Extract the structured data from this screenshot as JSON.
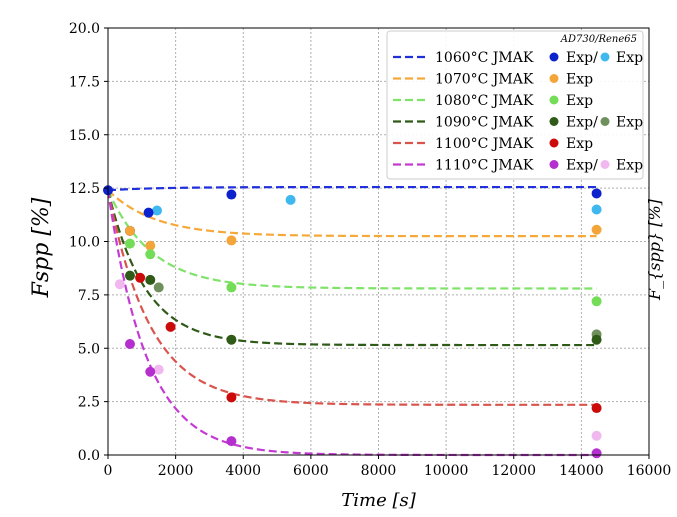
{
  "chart_data": {
    "type": "line",
    "xlabel": "Time [s]",
    "ylabel": "Fspp [%]",
    "xlim": [
      0,
      16000
    ],
    "ylim": [
      0,
      20
    ],
    "x_ticks": [
      0,
      2000,
      4000,
      6000,
      8000,
      10000,
      12000,
      14000,
      16000
    ],
    "y_ticks": [
      "0.0",
      "2.5",
      "5.0",
      "7.5",
      "10.0",
      "12.5",
      "15.0",
      "17.5",
      "20.0"
    ],
    "grid": true,
    "legend_placement": "top-right",
    "legend_header": "AD730/Rene65",
    "right_panel_label_fragment": "F_{spp} [%]",
    "series": [
      {
        "model_label": "1060°C JMAK",
        "color": "#1f2fd9",
        "exp_label": "Exp/",
        "exp2_label": "Exp",
        "exp1_color": "#0b22cc",
        "exp2_color": "#3fb8f0",
        "y0": 12.4,
        "yinf": 12.55,
        "tau": 1500,
        "exp1": [
          [
            0,
            12.4
          ],
          [
            650,
            10.5
          ],
          [
            1200,
            11.35
          ],
          [
            3650,
            12.2
          ],
          [
            14450,
            12.25
          ]
        ],
        "exp2": [
          [
            1450,
            11.45
          ],
          [
            5400,
            11.95
          ],
          [
            14450,
            11.5
          ]
        ]
      },
      {
        "model_label": "1070°C JMAK",
        "color": "#f5a93a",
        "exp_label": "Exp",
        "exp1_color": "#f3a53a",
        "y0": 12.4,
        "yinf": 10.25,
        "tau": 1400,
        "exp1": [
          [
            650,
            10.5
          ],
          [
            1250,
            9.8
          ],
          [
            3650,
            10.05
          ],
          [
            14450,
            10.55
          ]
        ],
        "exp2": []
      },
      {
        "model_label": "1080°C JMAK",
        "color": "#7fe36a",
        "exp_label": "Exp",
        "exp1_color": "#74dd58",
        "y0": 12.4,
        "yinf": 7.8,
        "tau": 1300,
        "exp1": [
          [
            650,
            9.9
          ],
          [
            1250,
            9.4
          ],
          [
            3650,
            7.85
          ],
          [
            14450,
            7.2
          ]
        ],
        "exp2": []
      },
      {
        "model_label": "1090°C JMAK",
        "color": "#2f5a17",
        "exp_label": "Exp/",
        "exp2_label": "Exp",
        "exp1_color": "#2f5a17",
        "exp2_color": "#6f8f5c",
        "y0": 12.4,
        "yinf": 5.15,
        "tau": 1100,
        "exp1": [
          [
            650,
            8.4
          ],
          [
            1250,
            8.2
          ],
          [
            3650,
            5.4
          ],
          [
            14450,
            5.4
          ]
        ],
        "exp2": [
          [
            1500,
            7.85
          ],
          [
            14450,
            5.65
          ]
        ]
      },
      {
        "model_label": "1100°C JMAK",
        "color": "#d9544c",
        "exp_label": "Exp",
        "exp1_color": "#cc0a0a",
        "y0": 12.4,
        "yinf": 2.35,
        "tau": 1250,
        "exp1": [
          [
            950,
            8.3
          ],
          [
            1850,
            6.0
          ],
          [
            3650,
            2.7
          ],
          [
            14450,
            2.2
          ]
        ],
        "exp2": []
      },
      {
        "model_label": "1110°C JMAK",
        "color": "#c43bd4",
        "exp_label": "Exp/",
        "exp2_label": "Exp",
        "exp1_color": "#b52fcf",
        "exp2_color": "#f1b8ef",
        "y0": 12.4,
        "yinf": 0.0,
        "tau": 1150,
        "exp1": [
          [
            650,
            5.2
          ],
          [
            1250,
            3.9
          ],
          [
            3650,
            0.65
          ],
          [
            14450,
            0.08
          ]
        ],
        "exp2": [
          [
            350,
            8.0
          ],
          [
            1500,
            4.0
          ],
          [
            14450,
            0.9
          ]
        ]
      }
    ]
  }
}
